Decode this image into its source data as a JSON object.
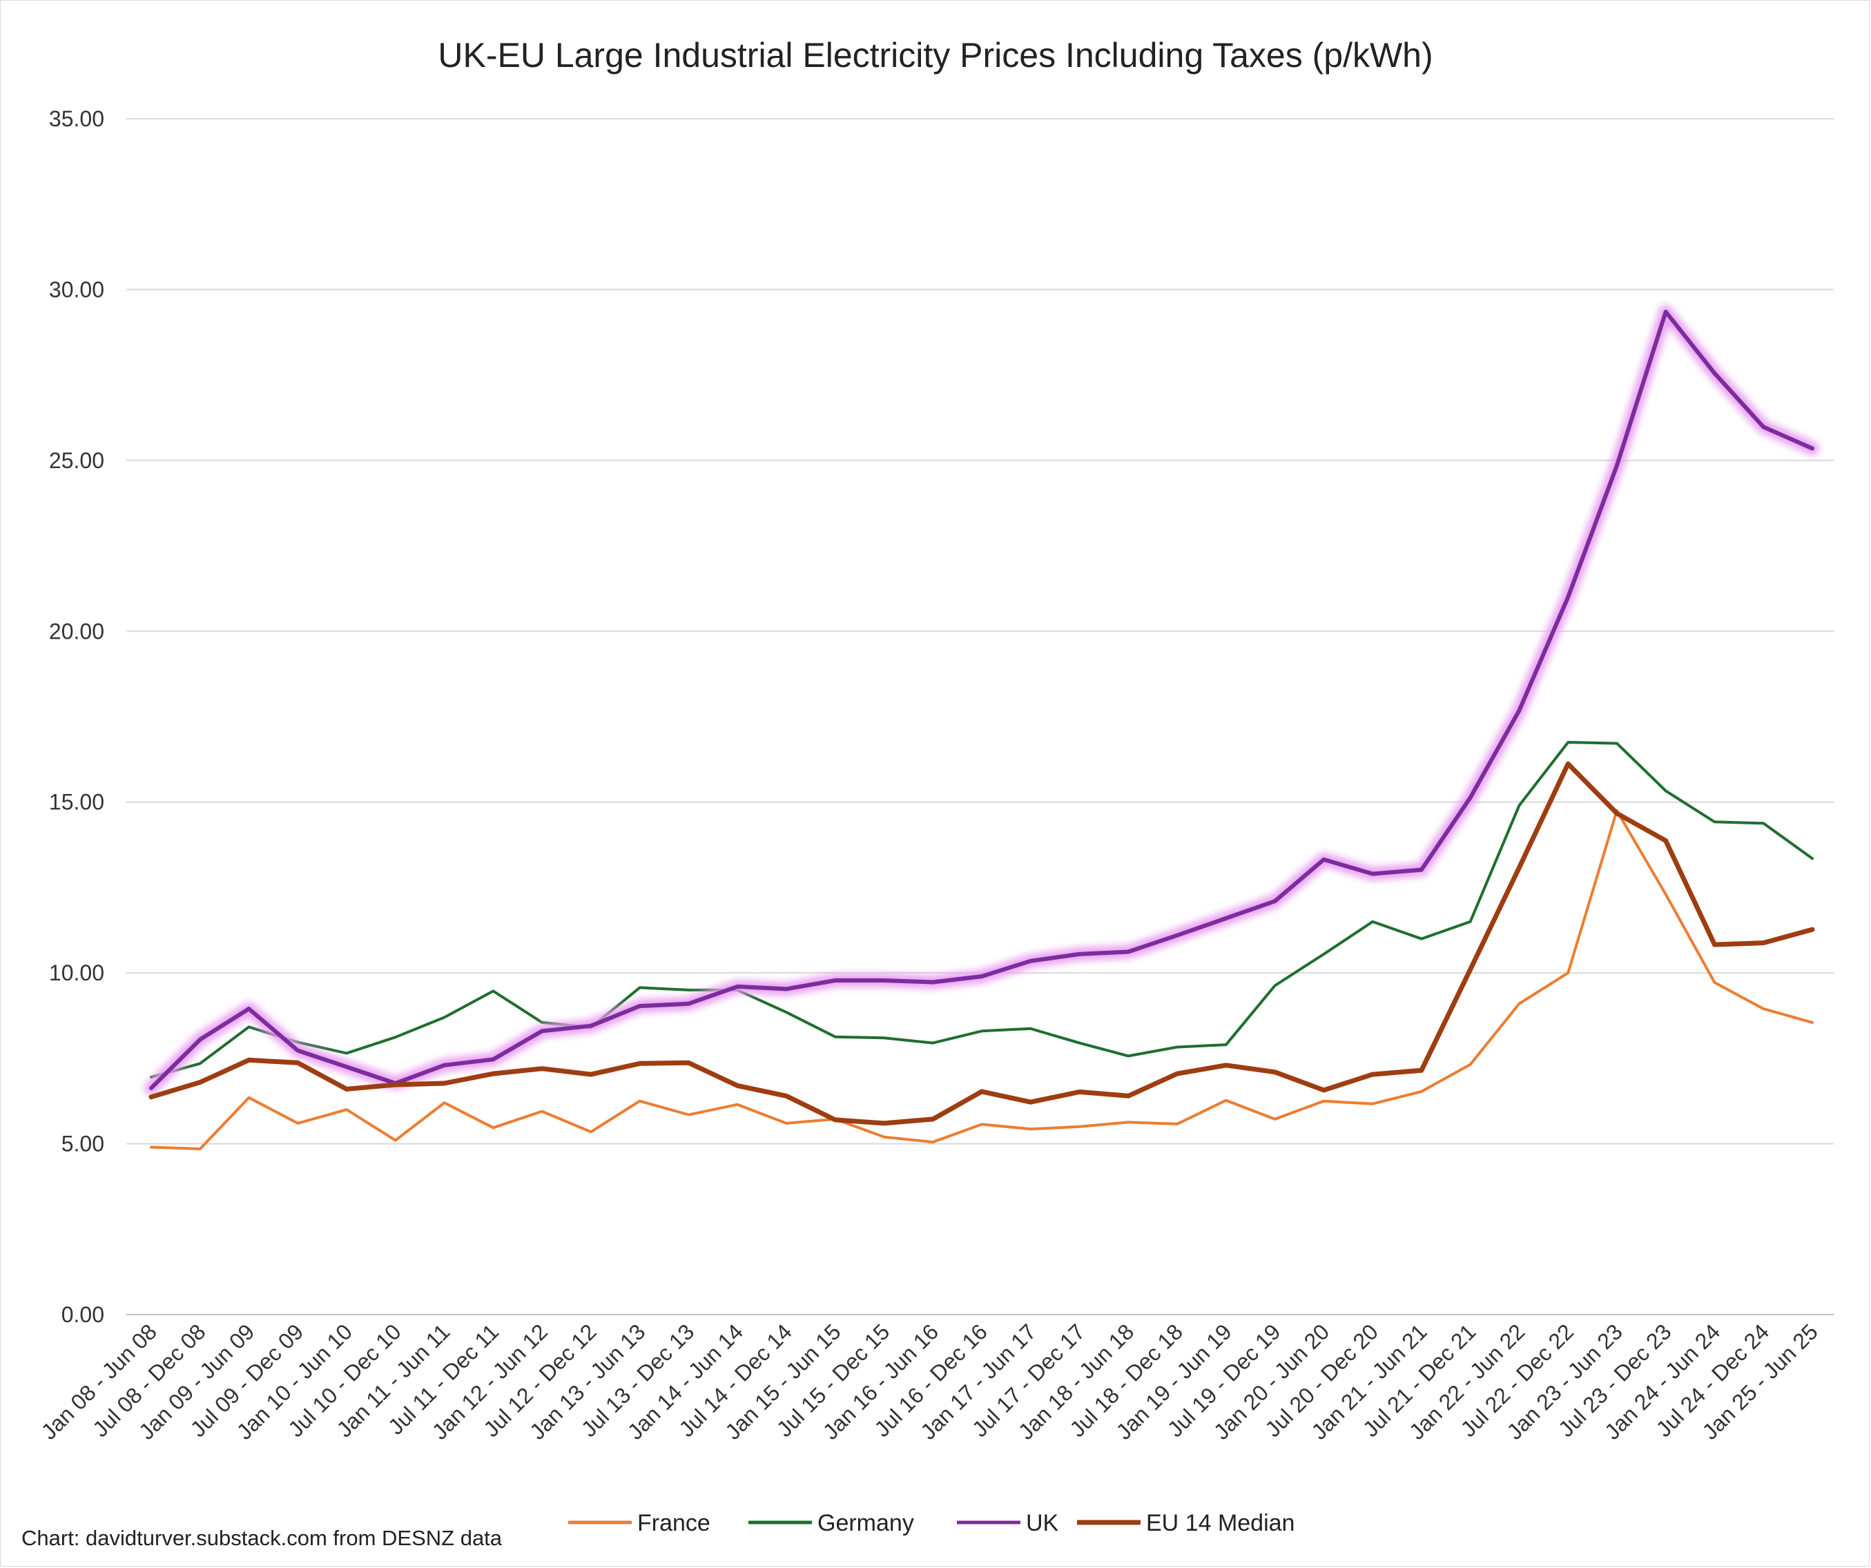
{
  "chart_data": {
    "type": "line",
    "title": "UK-EU Large Industrial Electricity Prices Including Taxes (p/kWh)",
    "xlabel": "",
    "ylabel": "",
    "ylim": [
      0,
      35
    ],
    "y_ticks": [
      "0.00",
      "5.00",
      "10.00",
      "15.00",
      "20.00",
      "25.00",
      "30.00",
      "35.00"
    ],
    "grid": true,
    "legend_position": "bottom",
    "categories": [
      "Jan 08 - Jun 08",
      "Jul 08 - Dec 08",
      "Jan 09 - Jun 09",
      "Jul 09 - Dec 09",
      "Jan 10 - Jun 10",
      "Jul 10 - Dec 10",
      "Jan 11 - Jun 11",
      "Jul 11 - Dec 11",
      "Jan 12 - Jun 12",
      "Jul 12 - Dec 12",
      "Jan 13 - Jun 13",
      "Jul 13 - Dec 13",
      "Jan 14 - Jun 14",
      "Jul 14 - Dec 14",
      "Jan 15 - Jun 15",
      "Jul 15 - Dec 15",
      "Jan 16 - Jun 16",
      "Jul 16 - Dec 16",
      "Jan 17 - Jun 17",
      "Jul 17 - Dec 17",
      "Jan 18 - Jun 18",
      "Jul 18 - Dec 18",
      "Jan 19 - Jun 19",
      "Jul 19 - Dec 19",
      "Jan 20 - Jun 20",
      "Jul 20 - Dec 20",
      "Jan 21 - Jun 21",
      "Jul 21 - Dec 21",
      "Jan 22 - Jun 22",
      "Jul 22 - Dec 22",
      "Jan 23 - Jun 23",
      "Jul 23 - Dec 23",
      "Jan 24 - Jun 24",
      "Jul 24 - Dec 24",
      "Jan 25 - Jun 25"
    ],
    "series": [
      {
        "name": "France",
        "color": "#ED7D31",
        "values": [
          4.9,
          4.85,
          6.35,
          5.6,
          6.0,
          5.1,
          6.2,
          5.47,
          5.95,
          5.35,
          6.25,
          5.85,
          6.15,
          5.6,
          5.72,
          5.2,
          5.05,
          5.57,
          5.43,
          5.5,
          5.63,
          5.58,
          6.27,
          5.72,
          6.25,
          6.17,
          6.53,
          7.32,
          9.1,
          10.0,
          14.75,
          12.3,
          9.72,
          8.95,
          8.55
        ]
      },
      {
        "name": "Germany",
        "color": "#1E6E2E",
        "values": [
          6.95,
          7.35,
          8.42,
          7.97,
          7.65,
          8.12,
          8.7,
          9.47,
          8.55,
          8.4,
          9.57,
          9.5,
          9.5,
          8.85,
          8.13,
          8.1,
          7.95,
          8.3,
          8.37,
          7.95,
          7.57,
          7.83,
          7.9,
          9.63,
          10.55,
          11.5,
          11.0,
          11.5,
          14.9,
          16.75,
          16.72,
          15.33,
          14.42,
          14.38,
          13.35
        ]
      },
      {
        "name": "UK",
        "color": "#7B2C9E",
        "glow": "#E89CF0",
        "values": [
          6.63,
          8.05,
          8.95,
          7.73,
          7.25,
          6.77,
          7.3,
          7.47,
          8.3,
          8.45,
          9.03,
          9.1,
          9.6,
          9.53,
          9.78,
          9.78,
          9.73,
          9.9,
          10.35,
          10.55,
          10.62,
          11.1,
          11.6,
          12.1,
          13.32,
          12.9,
          13.02,
          15.13,
          17.68,
          21.0,
          24.85,
          29.35,
          27.55,
          25.98,
          25.35
        ]
      },
      {
        "name": "EU 14 Median",
        "color": "#9E3D11",
        "values": [
          6.37,
          6.8,
          7.45,
          7.37,
          6.6,
          6.73,
          6.77,
          7.05,
          7.2,
          7.03,
          7.35,
          7.37,
          6.7,
          6.4,
          5.7,
          5.6,
          5.72,
          6.53,
          6.22,
          6.52,
          6.4,
          7.05,
          7.3,
          7.1,
          6.57,
          7.03,
          7.15,
          10.1,
          13.08,
          16.12,
          14.67,
          13.87,
          10.83,
          10.88,
          11.27
        ]
      }
    ]
  },
  "source_note": "Chart: davidturver.substack.com from DESNZ data"
}
